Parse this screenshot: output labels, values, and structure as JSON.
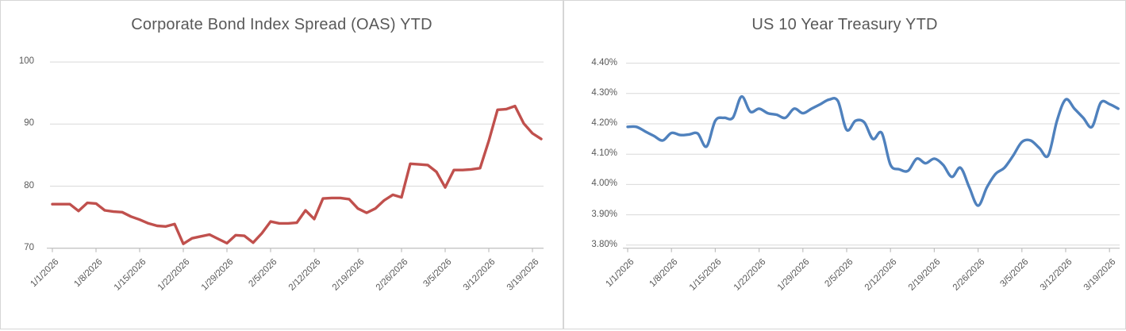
{
  "page": {
    "background": "#ffffff",
    "panel_border_color": "#d6d6d6",
    "grid_color": "#d9d9d9",
    "axis_color": "#bfbfbf",
    "text_color": "#595959"
  },
  "chart_data": [
    {
      "type": "line",
      "title": "Corporate Bond Index Spread (OAS) YTD",
      "series_name": "Corporate Bond Index Spread (OAS)",
      "series_color": "#C0504D",
      "smooth": false,
      "grid": true,
      "legend": "none",
      "ylim": [
        70,
        100
      ],
      "yticks": [
        {
          "value": 70,
          "label": "70"
        },
        {
          "value": 80,
          "label": "80"
        },
        {
          "value": 90,
          "label": "90"
        },
        {
          "value": 100,
          "label": "100"
        }
      ],
      "tick_every": 5,
      "x_tick_labels": [
        "1/1/2026",
        "1/8/2026",
        "1/15/2026",
        "1/22/2026",
        "1/29/2026",
        "2/5/2026",
        "2/12/2026",
        "2/19/2026",
        "2/26/2026",
        "3/5/2026",
        "3/12/2026",
        "3/19/2026"
      ],
      "x": [
        "1/1/2026",
        "1/2/2026",
        "1/5/2026",
        "1/6/2026",
        "1/7/2026",
        "1/8/2026",
        "1/9/2026",
        "1/12/2026",
        "1/13/2026",
        "1/14/2026",
        "1/15/2026",
        "1/16/2026",
        "1/19/2026",
        "1/20/2026",
        "1/21/2026",
        "1/22/2026",
        "1/23/2026",
        "1/26/2026",
        "1/27/2026",
        "1/28/2026",
        "1/29/2026",
        "1/30/2026",
        "2/2/2026",
        "2/3/2026",
        "2/4/2026",
        "2/5/2026",
        "2/6/2026",
        "2/9/2026",
        "2/10/2026",
        "2/11/2026",
        "2/12/2026",
        "2/13/2026",
        "2/16/2026",
        "2/17/2026",
        "2/18/2026",
        "2/19/2026",
        "2/20/2026",
        "2/23/2026",
        "2/24/2026",
        "2/25/2026",
        "2/26/2026",
        "2/27/2026",
        "3/2/2026",
        "3/3/2026",
        "3/4/2026",
        "3/5/2026",
        "3/6/2026",
        "3/9/2026",
        "3/10/2026",
        "3/11/2026",
        "3/12/2026",
        "3/13/2026",
        "3/16/2026",
        "3/17/2026",
        "3/18/2026",
        "3/19/2026",
        "3/20/2026"
      ],
      "values": [
        77.1,
        77.1,
        77.1,
        76.0,
        77.3,
        77.2,
        76.1,
        75.9,
        75.8,
        75.1,
        74.6,
        74.0,
        73.6,
        73.5,
        73.9,
        70.7,
        71.6,
        71.9,
        72.2,
        71.5,
        70.8,
        72.1,
        72.0,
        70.9,
        72.4,
        74.3,
        74.0,
        74.0,
        74.1,
        76.1,
        74.7,
        78.0,
        78.1,
        78.1,
        77.9,
        76.4,
        75.7,
        76.4,
        77.7,
        78.6,
        78.2,
        83.6,
        83.5,
        83.4,
        82.3,
        79.8,
        82.6,
        82.6,
        82.7,
        82.9,
        87.3,
        92.3,
        92.4,
        92.9,
        90.1,
        88.5,
        87.6
      ]
    },
    {
      "type": "line",
      "title": "US 10 Year Treasury YTD",
      "series_name": "US 10 Year Treasury",
      "series_color": "#4F81BD",
      "smooth": true,
      "grid": true,
      "legend": "none",
      "ylim": [
        3.8,
        4.4
      ],
      "yticks": [
        {
          "value": 3.8,
          "label": "3.80%"
        },
        {
          "value": 3.9,
          "label": "3.90%"
        },
        {
          "value": 4.0,
          "label": "4.00%"
        },
        {
          "value": 4.1,
          "label": "4.10%"
        },
        {
          "value": 4.2,
          "label": "4.20%"
        },
        {
          "value": 4.3,
          "label": "4.30%"
        },
        {
          "value": 4.4,
          "label": "4.40%"
        }
      ],
      "tick_every": 5,
      "x_tick_labels": [
        "1/1/2026",
        "1/8/2026",
        "1/15/2026",
        "1/22/2026",
        "1/29/2026",
        "2/5/2026",
        "2/12/2026",
        "2/19/2026",
        "2/26/2026",
        "3/5/2026",
        "3/12/2026",
        "3/19/2026"
      ],
      "x": [
        "1/1/2026",
        "1/2/2026",
        "1/5/2026",
        "1/6/2026",
        "1/7/2026",
        "1/8/2026",
        "1/9/2026",
        "1/12/2026",
        "1/13/2026",
        "1/14/2026",
        "1/15/2026",
        "1/16/2026",
        "1/19/2026",
        "1/20/2026",
        "1/21/2026",
        "1/22/2026",
        "1/23/2026",
        "1/26/2026",
        "1/27/2026",
        "1/28/2026",
        "1/29/2026",
        "1/30/2026",
        "2/2/2026",
        "2/3/2026",
        "2/4/2026",
        "2/5/2026",
        "2/6/2026",
        "2/9/2026",
        "2/10/2026",
        "2/11/2026",
        "2/12/2026",
        "2/13/2026",
        "2/16/2026",
        "2/17/2026",
        "2/18/2026",
        "2/19/2026",
        "2/20/2026",
        "2/23/2026",
        "2/24/2026",
        "2/25/2026",
        "2/26/2026",
        "2/27/2026",
        "3/2/2026",
        "3/3/2026",
        "3/4/2026",
        "3/5/2026",
        "3/6/2026",
        "3/9/2026",
        "3/10/2026",
        "3/11/2026",
        "3/12/2026",
        "3/13/2026",
        "3/16/2026",
        "3/17/2026",
        "3/18/2026",
        "3/19/2026",
        "3/20/2026"
      ],
      "values": [
        4.19,
        4.19,
        4.175,
        4.16,
        4.145,
        4.17,
        4.163,
        4.165,
        4.168,
        4.125,
        4.21,
        4.22,
        4.22,
        4.29,
        4.24,
        4.25,
        4.235,
        4.23,
        4.22,
        4.25,
        4.235,
        4.25,
        4.265,
        4.28,
        4.275,
        4.18,
        4.21,
        4.205,
        4.15,
        4.17,
        4.065,
        4.05,
        4.045,
        4.085,
        4.07,
        4.085,
        4.065,
        4.025,
        4.055,
        3.99,
        3.93,
        3.99,
        4.035,
        4.055,
        4.095,
        4.14,
        4.145,
        4.12,
        4.095,
        4.21,
        4.28,
        4.25,
        4.22,
        4.19,
        4.27,
        4.265,
        4.25
      ]
    }
  ]
}
